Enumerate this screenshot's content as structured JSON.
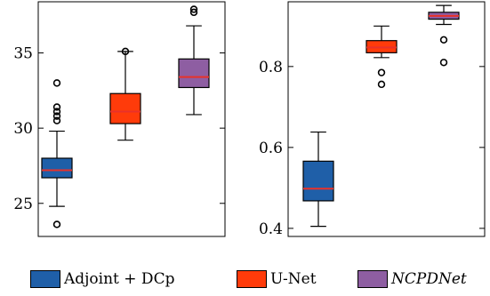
{
  "chart_data": [
    {
      "type": "box",
      "ylim": [
        22.8,
        38.4
      ],
      "yticks": [
        25,
        30,
        35
      ],
      "tick_labels": [
        "25",
        "30",
        "35"
      ],
      "series": [
        {
          "name": "Adjoint + DCp",
          "color": "#1f5fa8",
          "whislo": 24.8,
          "q1": 26.7,
          "median": 27.2,
          "q3": 28.0,
          "whishi": 29.8,
          "fliers": [
            23.6,
            30.5,
            30.8,
            31.1,
            31.4,
            33.0
          ]
        },
        {
          "name": "U-Net",
          "color": "#ff3b0a",
          "whislo": 29.2,
          "q1": 30.3,
          "median": 31.1,
          "q3": 32.3,
          "whishi": 35.1,
          "fliers": [
            35.1
          ]
        },
        {
          "name": "NCPDNet",
          "color": "#8e5ea2",
          "whislo": 30.9,
          "q1": 32.7,
          "median": 33.4,
          "q3": 34.6,
          "whishi": 36.8,
          "fliers": [
            37.7,
            37.9
          ]
        }
      ]
    },
    {
      "type": "box",
      "ylim": [
        0.38,
        0.96
      ],
      "yticks": [
        0.4,
        0.6,
        0.8
      ],
      "tick_labels": [
        "0.4",
        "0.6",
        "0.8"
      ],
      "series": [
        {
          "name": "Adjoint + DCp",
          "color": "#1f5fa8",
          "whislo": 0.405,
          "q1": 0.468,
          "median": 0.498,
          "q3": 0.566,
          "whishi": 0.638,
          "fliers": []
        },
        {
          "name": "U-Net",
          "color": "#ff3b0a",
          "whislo": 0.822,
          "q1": 0.834,
          "median": 0.847,
          "q3": 0.864,
          "whishi": 0.9,
          "fliers": [
            0.756,
            0.785
          ]
        },
        {
          "name": "NCPDNet",
          "color": "#8e5ea2",
          "whislo": 0.904,
          "q1": 0.917,
          "median": 0.925,
          "q3": 0.934,
          "whishi": 0.951,
          "fliers": [
            0.81,
            0.866
          ]
        }
      ]
    }
  ],
  "legend": [
    {
      "label": "Adjoint + DCp",
      "color": "#1f5fa8",
      "italic": false
    },
    {
      "label": "U-Net",
      "color": "#ff3b0a",
      "italic": false
    },
    {
      "label": "NCPDNet",
      "color": "#8e5ea2",
      "italic": true
    }
  ],
  "median_color": "#e8322a"
}
